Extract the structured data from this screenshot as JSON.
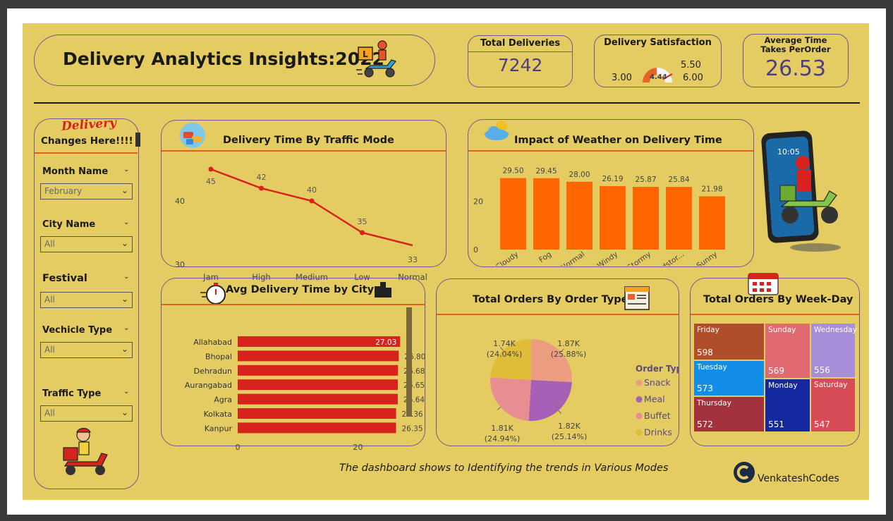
{
  "header": {
    "title": "Delivery Analytics Insights:2022",
    "kpis": [
      {
        "label": "Total Deliveries",
        "value": "7242"
      },
      {
        "label": "Average Time Takes PerOrder",
        "value": "26.53"
      }
    ],
    "gauge": {
      "label": "Delivery Satisfaction",
      "value": 4.44,
      "min": 3.0,
      "max": 6.0,
      "target": 5.5,
      "min_label": "3.00",
      "max_label": "6.00",
      "target_label": "5.50",
      "value_label": "4.44"
    }
  },
  "sidebar": {
    "logo_text": "Delivery",
    "title": "Changes Here!!!!",
    "filters": [
      {
        "label": "Month Name",
        "value": "February"
      },
      {
        "label": "City Name",
        "value": "All"
      },
      {
        "label": "Festival",
        "value": "All"
      },
      {
        "label": "Vechicle Type",
        "value": "All"
      },
      {
        "label": "Traffic Type",
        "value": "All"
      }
    ]
  },
  "footer": {
    "note": "The dashboard shows to Identifying the trends in Various Modes",
    "brand": "VenkateshCodes"
  },
  "colors": {
    "background": "#e5cc62",
    "accent_red": "#d8221e",
    "orange": "#ff6600",
    "border": "#6e5a8e",
    "kpi_value": "#4a3f86"
  },
  "chart_data": [
    {
      "id": "traffic",
      "type": "line",
      "title": "Delivery Time By Traffic Mode",
      "categories": [
        "Jam",
        "High",
        "Medium",
        "Low",
        "Normal"
      ],
      "values": [
        45,
        42,
        40,
        35,
        33
      ],
      "ylim": [
        30,
        46
      ],
      "yticks": [
        30,
        40
      ]
    },
    {
      "id": "weather",
      "type": "bar",
      "title": "Impact of Weather on Delivery Time",
      "categories": [
        "Cloudy",
        "Fog",
        "Normal",
        "Windy",
        "Stormy",
        "Sandstor...",
        "Sunny"
      ],
      "values": [
        29.5,
        29.45,
        28.0,
        26.19,
        25.87,
        25.84,
        21.98
      ],
      "value_labels": [
        "29.50",
        "29.45",
        "28.00",
        "26.19",
        "25.87",
        "25.84",
        "21.98"
      ],
      "ylim": [
        0,
        32
      ],
      "yticks": [
        0,
        20
      ]
    },
    {
      "id": "city",
      "type": "bar",
      "orientation": "horizontal",
      "title": "Avg Delivery Time by City",
      "categories": [
        "Allahabad",
        "Bhopal",
        "Dehradun",
        "Aurangabad",
        "Agra",
        "Kolkata",
        "Kanpur"
      ],
      "values": [
        27.03,
        26.8,
        26.68,
        26.65,
        26.64,
        26.36,
        26.35
      ],
      "value_labels": [
        "27.03",
        "26.80",
        "26.68",
        "26.65",
        "26.64",
        "26.36",
        "26.35"
      ],
      "xlim": [
        0,
        27
      ],
      "xticks": [
        0,
        20
      ]
    },
    {
      "id": "ordertype",
      "type": "pie",
      "title": "Total Orders By Order Type",
      "legend_title": "Order Type",
      "labels": [
        "Snack",
        "Meal",
        "Buffet",
        "Drinks"
      ],
      "values": [
        1870,
        1820,
        1810,
        1740
      ],
      "display": [
        "1.87K",
        "1.82K",
        "1.81K",
        "1.74K"
      ],
      "percent": [
        "(25.88%)",
        "(25.14%)",
        "(24.94%)",
        "(24.04%)"
      ],
      "colors": [
        "#ec9d80",
        "#a660b6",
        "#e98e90",
        "#dfbd38"
      ]
    },
    {
      "id": "weekday",
      "type": "treemap",
      "title": "Total Orders By Week-Day",
      "labels": [
        "Friday",
        "Tuesday",
        "Thursday",
        "Sunday",
        "Monday",
        "Wednesday",
        "Saturday"
      ],
      "values": [
        598,
        573,
        572,
        569,
        551,
        556,
        547
      ],
      "colors": [
        "#b04e2c",
        "#128ee8",
        "#a4323c",
        "#df6a72",
        "#1428a0",
        "#a88ed8",
        "#d84c58"
      ]
    }
  ]
}
